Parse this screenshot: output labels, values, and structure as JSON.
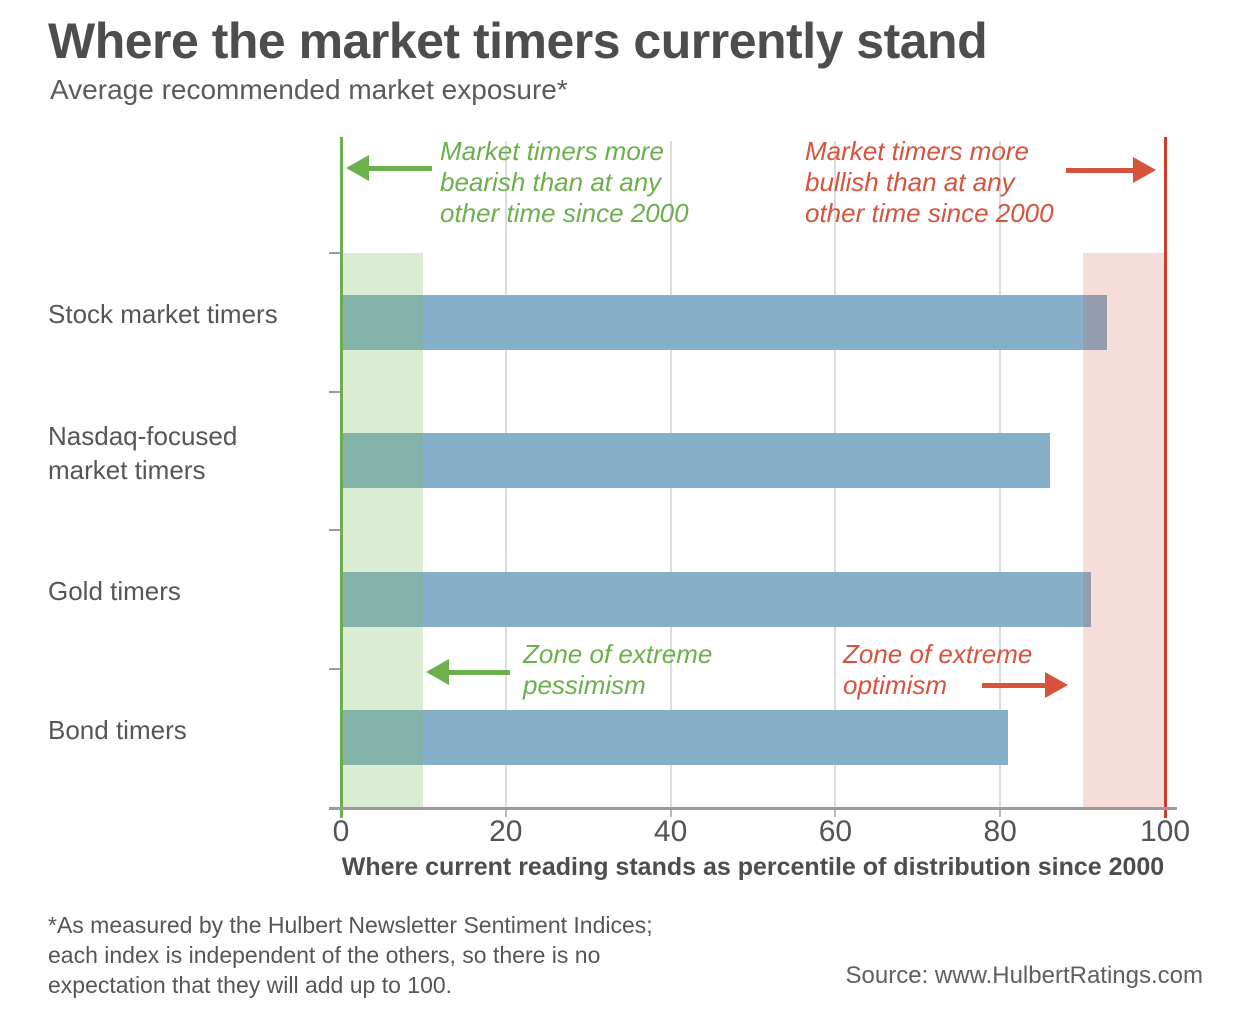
{
  "chart_data": {
    "type": "bar",
    "orientation": "horizontal",
    "title": "Where the market timers currently stand",
    "subtitle": "Average recommended market exposure*",
    "categories": [
      "Stock market timers",
      "Nasdaq-focused market timers",
      "Gold timers",
      "Bond timers"
    ],
    "values": [
      93,
      86,
      91,
      81
    ],
    "xlim": [
      0,
      100
    ],
    "xticks": [
      0,
      20,
      40,
      60,
      80,
      100
    ],
    "xlabel": "Where current reading stands as percentile of distribution since 2000",
    "grid": true,
    "legend": "none",
    "bar_color": "#86afca",
    "zones": [
      {
        "name": "pessimism",
        "from": 0,
        "to": 10,
        "fill": "rgba(123,185,90,0.28)",
        "label": "Zone of extreme pessimism"
      },
      {
        "name": "optimism",
        "from": 90,
        "to": 100,
        "fill": "rgba(212,74,52,0.19)",
        "label": "Zone of extreme optimism"
      }
    ],
    "boundary_lines": [
      {
        "at": 0,
        "color": "#6cb04d"
      },
      {
        "at": 100,
        "color": "#cc3d2c"
      }
    ],
    "annotations": [
      {
        "id": "bearish",
        "lines": [
          "Market timers more",
          "bearish than at any",
          "other time since 2000"
        ],
        "color": "#6cb04d",
        "arrow": "left"
      },
      {
        "id": "bullish",
        "lines": [
          "Market timers more",
          "bullish than at any",
          "other time since 2000"
        ],
        "color": "#d6533c",
        "arrow": "right"
      },
      {
        "id": "pessimism",
        "lines": [
          "Zone of extreme",
          "pessimism"
        ],
        "color": "#6cb04d",
        "arrow": "left"
      },
      {
        "id": "optimism",
        "lines": [
          "Zone of extreme",
          "optimism"
        ],
        "color": "#d6533c",
        "arrow": "right"
      }
    ]
  },
  "footer": {
    "footnote_lines": [
      "*As measured by the Hulbert Newsletter Sentiment Indices;",
      "each index is independent of the others, so there is no",
      "expectation that they will add up to 100."
    ],
    "source": "Source: www.HulbertRatings.com"
  }
}
